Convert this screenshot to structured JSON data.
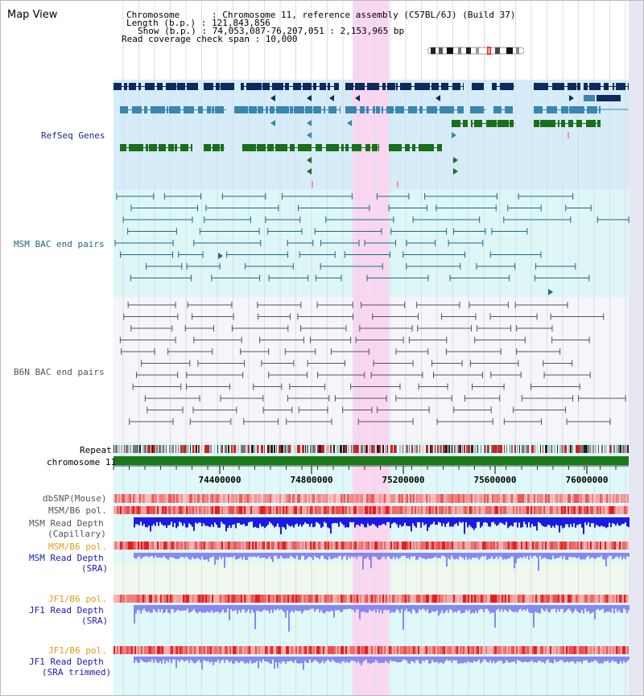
{
  "title": "Map View",
  "header": {
    "line1": "Chromosome      : Chromosome 11, reference assembly (C57BL/6J) (Build 37)",
    "line2": "Length (b.p.) : 121,843,856",
    "line3": "Show (b.p.) : 74,053,087-76,207,051 : 2,153,965 bp",
    "line4": "Read coverage check span : 10,000"
  },
  "track_labels": {
    "refseq": "RefSeq Genes",
    "msm_bac": "MSM BAC end pairs",
    "b6n_bac": "B6N BAC end pairs",
    "repeat": "Repeat",
    "chromosome": "chromosome 11",
    "dbsnp": "dbSNP(Mouse)",
    "msm_b6_pol": "MSM/B6 pol.",
    "msm_depth_cap_1": "MSM Read Depth",
    "msm_depth_cap_2": "(Capillary)",
    "msm_b6_pol_2": "MSM/B6 pol.",
    "msm_depth_sra_1": "MSM Read Depth",
    "msm_depth_sra_2": "(SRA)",
    "jf1_b6_pol": "JF1/B6 pol.",
    "jf1_depth_sra_1": "JF1 Read Depth",
    "jf1_depth_sra_2": "(SRA)",
    "jf1_b6_pol_2": "JF1/B6 pol.",
    "jf1_depth_trim_1": "JF1 Read Depth",
    "jf1_depth_trim_2": "(SRA trimmed)"
  },
  "axis": {
    "ticks": [
      "74400000",
      "74800000",
      "75200000",
      "75600000",
      "76000000"
    ]
  },
  "colors": {
    "refseq_bg": "#d6ecf8",
    "msm_bg": "#ddf6f6",
    "b6n_bg": "#f5f5fa",
    "lower_bg": "#dff8f8",
    "sra_bg": "#eef8ee",
    "highlight": "#f9d7f0",
    "gene_dark": "#0c2a5c",
    "gene_mid": "#3a86b0",
    "gene_green": "#1a6f1a",
    "msm_pair": "#1a6b86",
    "b6n_pair": "#555555",
    "chrom_green": "#1a7a1a",
    "depth_blue": "#1a1ae6",
    "depth_light": "#8888f0"
  }
}
